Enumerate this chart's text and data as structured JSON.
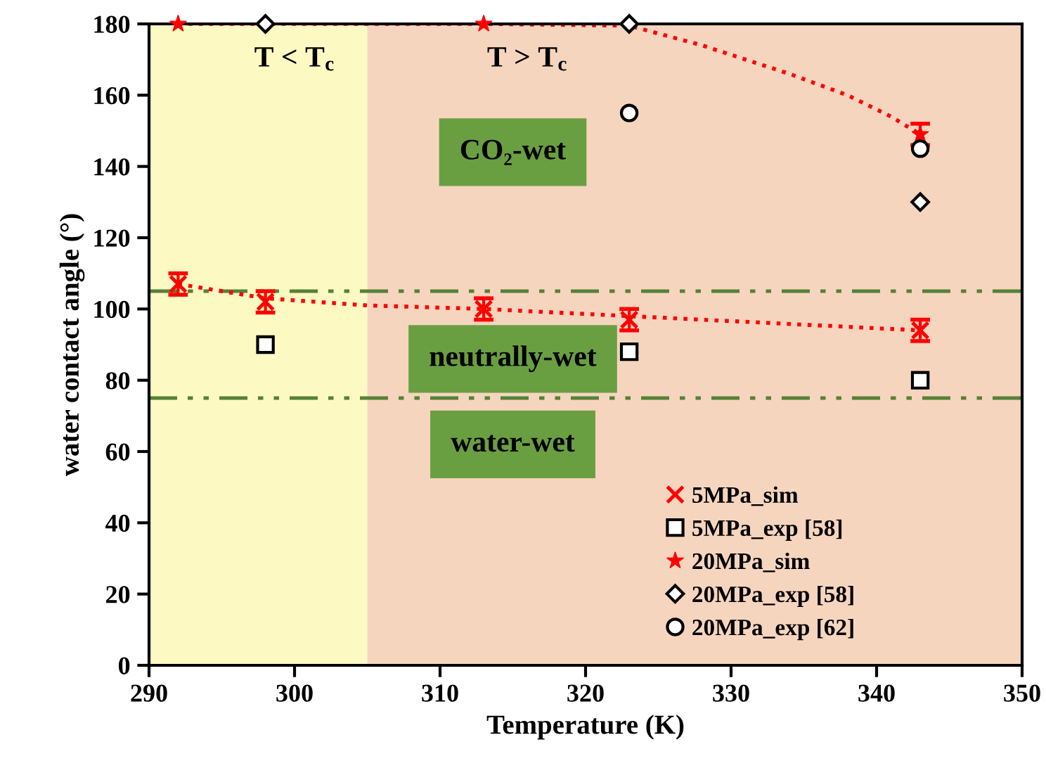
{
  "chart_data": {
    "type": "scatter",
    "xlabel": "Temperature (K)",
    "ylabel": "water contact angle (°)",
    "xlim": [
      290,
      350
    ],
    "xticks": [
      290,
      300,
      310,
      320,
      330,
      340,
      350
    ],
    "ylim": [
      0,
      180
    ],
    "yticks": [
      0,
      20,
      40,
      60,
      80,
      100,
      120,
      140,
      160,
      180
    ],
    "grid": false,
    "legend": "bottom right",
    "series": [
      {
        "name": "5MPa_sim",
        "color": "#ff0000",
        "marker": "cross",
        "x": [
          292,
          298,
          313,
          323,
          343
        ],
        "values": [
          107,
          102,
          100,
          97,
          94
        ],
        "errors": [
          3,
          3,
          3,
          3,
          3
        ]
      },
      {
        "name": "5MPa_exp [58]",
        "color": "#000000",
        "marker": "square",
        "x": [
          298,
          323,
          343
        ],
        "values": [
          90,
          88,
          80
        ]
      },
      {
        "name": "20MPa_sim",
        "color": "#ff0000",
        "marker": "star",
        "x": [
          292,
          313,
          343
        ],
        "values": [
          180,
          180,
          149
        ],
        "errors": [
          null,
          null,
          3
        ]
      },
      {
        "name": "20MPa_exp [58]",
        "color": "#000000",
        "marker": "diamond",
        "x": [
          298,
          323,
          343
        ],
        "values": [
          180,
          180,
          130
        ]
      },
      {
        "name": "20MPa_exp [62]",
        "color": "#000000",
        "marker": "circle",
        "x": [
          323,
          343
        ],
        "values": [
          155,
          145
        ]
      },
      {
        "type": "line",
        "color": "#ff0000",
        "line_style": "dotted",
        "x": [
          292,
          298,
          305,
          313,
          323,
          333,
          343
        ],
        "values": [
          107,
          103,
          101,
          100,
          98,
          96,
          94
        ]
      },
      {
        "type": "line",
        "color": "#ff0000",
        "line_style": "dotted",
        "x": [
          292,
          300,
          313,
          323,
          328,
          334,
          338,
          341,
          343
        ],
        "values": [
          180,
          180,
          180,
          179.5,
          174,
          166,
          160,
          154,
          149
        ]
      }
    ],
    "ref_lines": [
      {
        "axis": "y",
        "value": 105,
        "color": "#548235",
        "line_style": "dashdotdot"
      },
      {
        "axis": "y",
        "value": 75,
        "color": "#548235",
        "line_style": "dashdotdot"
      }
    ],
    "bands": [
      {
        "axis": "x",
        "from": 290,
        "to": 305,
        "color": "#fdf9c3"
      },
      {
        "axis": "x",
        "from": 305,
        "to": 350,
        "color": "#f6d5bf"
      }
    ],
    "annotations": [
      "T < T$_{c}$",
      "T > T$_{c}$",
      "CO₂-wet",
      "neutrally-wet",
      "water-wet"
    ]
  }
}
